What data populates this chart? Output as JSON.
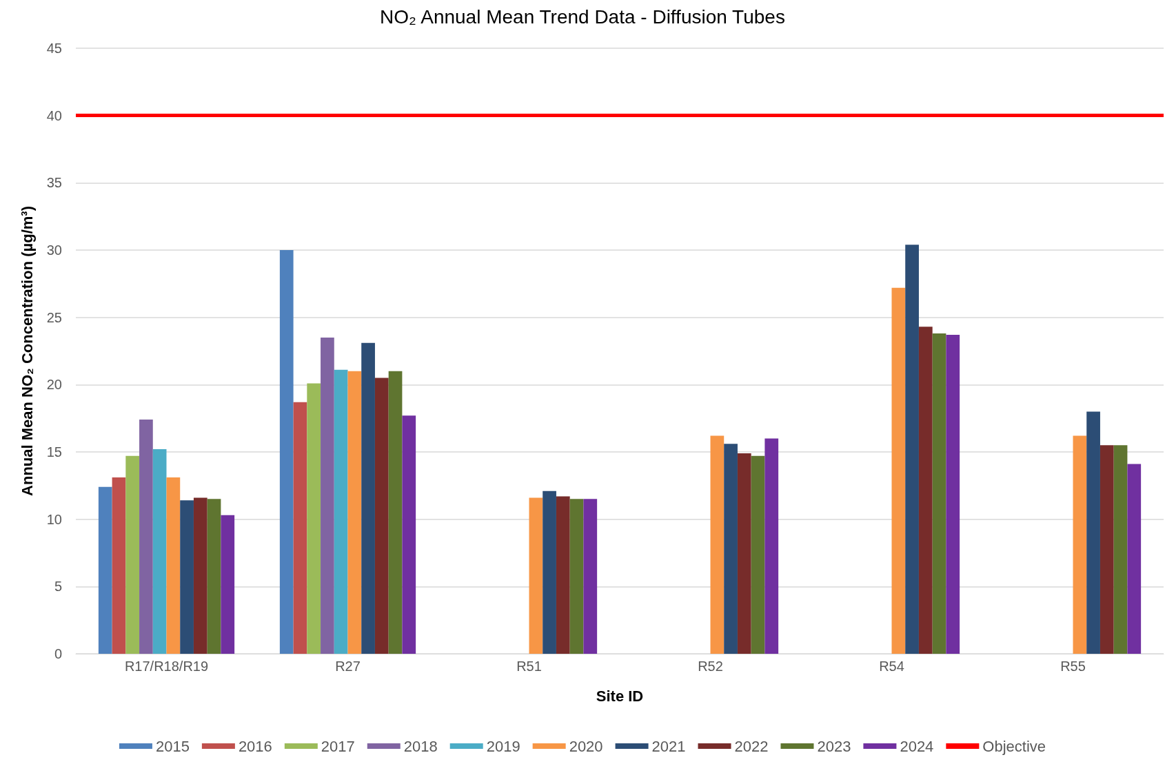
{
  "chart_data": {
    "type": "bar",
    "title": "NO₂ Annual Mean Trend Data - Diffusion Tubes",
    "xlabel": "Site ID",
    "ylabel": "Annual Mean NO₂ Concentration (µg/m³)",
    "categories": [
      "R17/R18/R19",
      "R27",
      "R51",
      "R52",
      "R54",
      "R55"
    ],
    "series": [
      {
        "name": "2015",
        "color": "#4f81bd",
        "values": [
          12.4,
          30.0,
          null,
          null,
          null,
          null
        ]
      },
      {
        "name": "2016",
        "color": "#c0504d",
        "values": [
          13.1,
          18.7,
          null,
          null,
          null,
          null
        ]
      },
      {
        "name": "2017",
        "color": "#9bbb59",
        "values": [
          14.7,
          20.1,
          null,
          null,
          null,
          null
        ]
      },
      {
        "name": "2018",
        "color": "#8064a2",
        "values": [
          17.4,
          23.5,
          null,
          null,
          null,
          null
        ]
      },
      {
        "name": "2019",
        "color": "#4bacc6",
        "values": [
          15.2,
          21.1,
          null,
          null,
          null,
          null
        ]
      },
      {
        "name": "2020",
        "color": "#f79646",
        "values": [
          13.1,
          21.0,
          11.6,
          16.2,
          27.2,
          16.2
        ]
      },
      {
        "name": "2021",
        "color": "#2c4d75",
        "values": [
          11.4,
          23.1,
          12.1,
          15.6,
          30.4,
          18.0
        ]
      },
      {
        "name": "2022",
        "color": "#772c2a",
        "values": [
          11.6,
          20.5,
          11.7,
          14.9,
          24.3,
          15.5
        ]
      },
      {
        "name": "2023",
        "color": "#5f7530",
        "values": [
          11.5,
          21.0,
          11.5,
          14.7,
          23.8,
          15.5
        ]
      },
      {
        "name": "2024",
        "color": "#7030a0",
        "values": [
          10.3,
          17.7,
          11.5,
          16.0,
          23.7,
          14.1
        ]
      }
    ],
    "ref_lines": [
      {
        "axis": "y",
        "value": 40,
        "label": "Objective",
        "color": "#ff0000"
      }
    ],
    "ylim": [
      0,
      45
    ],
    "yticks": [
      0,
      5,
      10,
      15,
      20,
      25,
      30,
      35,
      40,
      45
    ],
    "grid": "y",
    "legend": "bottom"
  }
}
